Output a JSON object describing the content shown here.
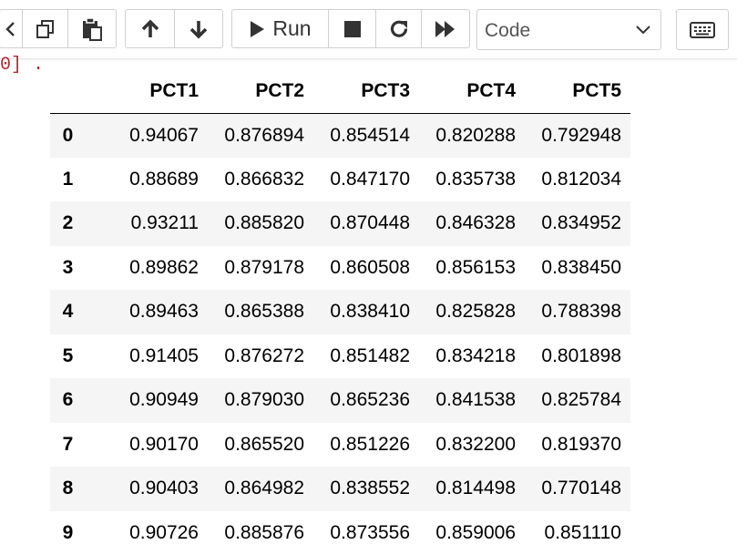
{
  "toolbar": {
    "icons": [
      "chevron-left-icon",
      "copy-icon",
      "paste-icon",
      "arrow-up-icon",
      "arrow-down-icon",
      "play-icon",
      "stop-icon",
      "restart-icon",
      "fast-forward-icon",
      "keyboard-icon"
    ],
    "run_label": "Run",
    "cell_type": {
      "selected": "Code"
    }
  },
  "output": {
    "prompt_fragment": "0] ."
  },
  "dataframe": {
    "columns": [
      "",
      "PCT1",
      "PCT2",
      "PCT3",
      "PCT4",
      "PCT5"
    ],
    "rows": [
      [
        "0",
        "0.94067",
        "0.876894",
        "0.854514",
        "0.820288",
        "0.792948"
      ],
      [
        "1",
        "0.88689",
        "0.866832",
        "0.847170",
        "0.835738",
        "0.812034"
      ],
      [
        "2",
        "0.93211",
        "0.885820",
        "0.870448",
        "0.846328",
        "0.834952"
      ],
      [
        "3",
        "0.89862",
        "0.879178",
        "0.860508",
        "0.856153",
        "0.838450"
      ],
      [
        "4",
        "0.89463",
        "0.865388",
        "0.838410",
        "0.825828",
        "0.788398"
      ],
      [
        "5",
        "0.91405",
        "0.876272",
        "0.851482",
        "0.834218",
        "0.801898"
      ],
      [
        "6",
        "0.90949",
        "0.879030",
        "0.865236",
        "0.841538",
        "0.825784"
      ],
      [
        "7",
        "0.90170",
        "0.865520",
        "0.851226",
        "0.832200",
        "0.819370"
      ],
      [
        "8",
        "0.90403",
        "0.864982",
        "0.838552",
        "0.814498",
        "0.770148"
      ],
      [
        "9",
        "0.90726",
        "0.885876",
        "0.873556",
        "0.859006",
        "0.851110"
      ]
    ]
  }
}
